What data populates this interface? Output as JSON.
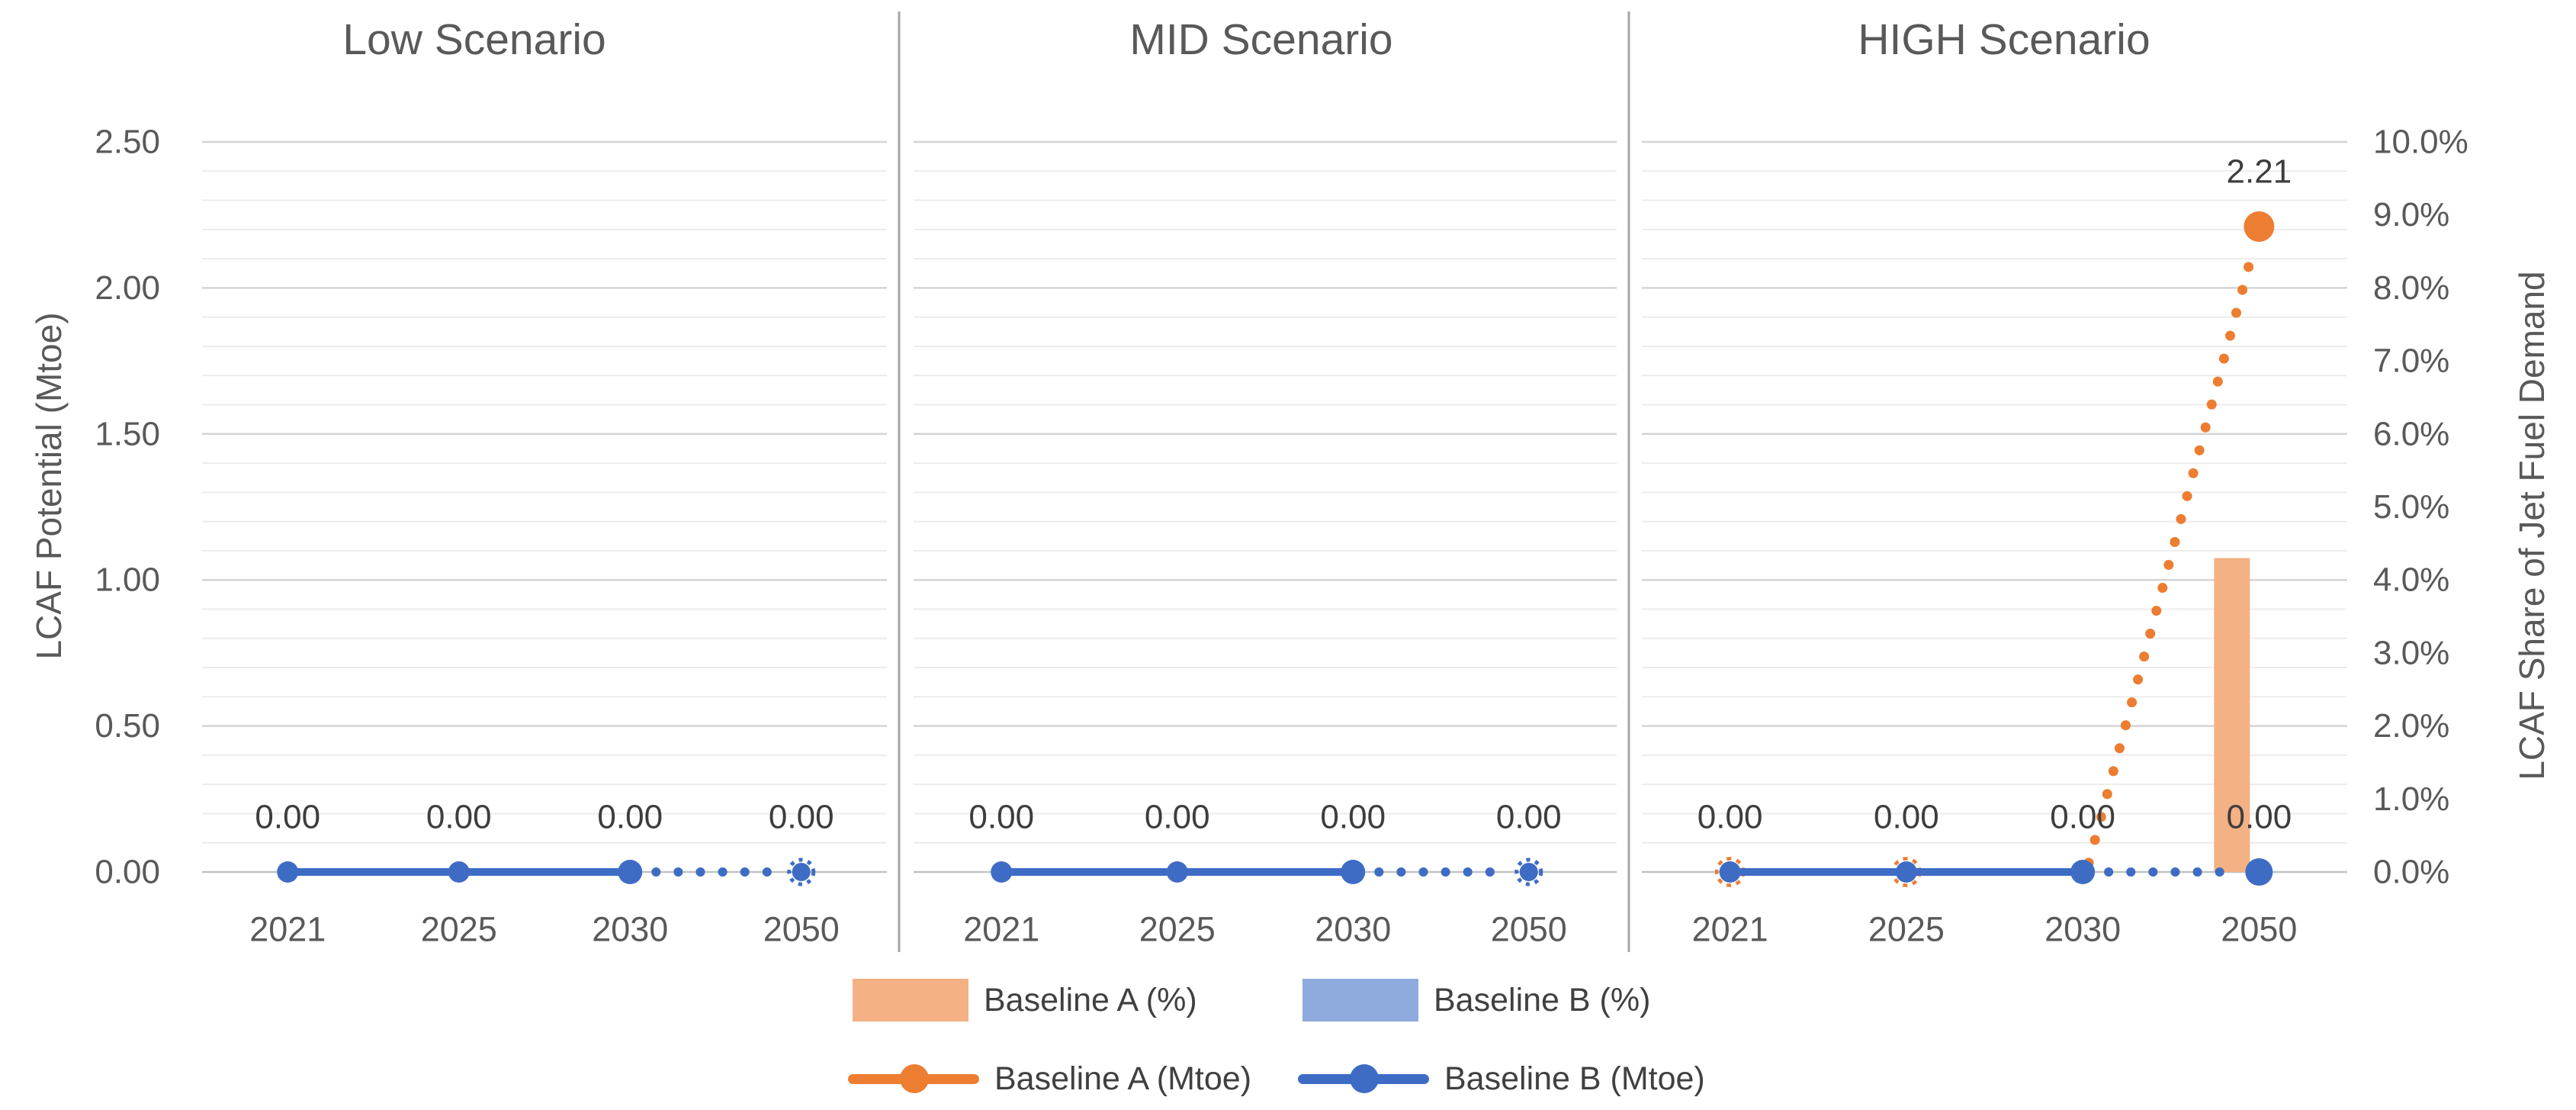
{
  "colors": {
    "blue": "#3E6CC5",
    "light_blue": "#8FAADC",
    "orange": "#ED7D31",
    "light_orange": "#F4B183",
    "axis_text": "#595959",
    "data_label_text": "#3D3D3D",
    "legend_text": "#404040",
    "grid_minor": "#ECECEC",
    "grid_major": "#D4D4D4",
    "grid_zero": "#C2C2C2",
    "panel_separator": "#A6A6A6"
  },
  "left_axis": {
    "title": "LCAF Potential (Mtoe)",
    "min": 0,
    "max": 2.5,
    "major_step": 0.5,
    "minor_step": 0.1,
    "ticks": [
      "2.50",
      "2.00",
      "1.50",
      "1.00",
      "0.50",
      "0.00"
    ],
    "tick_values": [
      2.5,
      2.0,
      1.5,
      1.0,
      0.5,
      0.0
    ]
  },
  "right_axis": {
    "title": "LCAF Share of Jet Fuel Demand",
    "min": 0,
    "max": 10,
    "ticks": [
      "10.0%",
      "9.0%",
      "8.0%",
      "7.0%",
      "6.0%",
      "5.0%",
      "4.0%",
      "3.0%",
      "2.0%",
      "1.0%",
      "0.0%"
    ],
    "tick_values": [
      10,
      9,
      8,
      7,
      6,
      5,
      4,
      3,
      2,
      1,
      0
    ]
  },
  "chart_data": {
    "type": "bar",
    "subtype": "combo bar + line, 3 panels, dual axis",
    "categories": [
      "2021",
      "2025",
      "2030",
      "2050"
    ],
    "line_solid_until": "2030",
    "line_dotted_after": "2030",
    "panels": [
      {
        "title": "Low Scenario",
        "bars": [
          {
            "name": "Baseline A (%)",
            "axis": "right",
            "values_pct": [
              0,
              0,
              0,
              0
            ]
          },
          {
            "name": "Baseline B (%)",
            "axis": "right",
            "values_pct": [
              0,
              0,
              0,
              0
            ]
          }
        ],
        "lines": [
          {
            "name": "Baseline A (Mtoe)",
            "axis": "left",
            "values_mtoe": [
              0,
              0,
              0,
              0
            ],
            "point_labels": [
              "",
              "",
              "",
              ""
            ]
          },
          {
            "name": "Baseline B (Mtoe)",
            "axis": "left",
            "values_mtoe": [
              0,
              0,
              0,
              0
            ],
            "point_labels": [
              "0.00",
              "0.00",
              "0.00",
              "0.00"
            ]
          }
        ]
      },
      {
        "title": "MID Scenario",
        "bars": [
          {
            "name": "Baseline A (%)",
            "axis": "right",
            "values_pct": [
              0,
              0,
              0,
              0
            ]
          },
          {
            "name": "Baseline B (%)",
            "axis": "right",
            "values_pct": [
              0,
              0,
              0,
              0
            ]
          }
        ],
        "lines": [
          {
            "name": "Baseline A (Mtoe)",
            "axis": "left",
            "values_mtoe": [
              0,
              0,
              0,
              0
            ],
            "point_labels": [
              "",
              "",
              "",
              ""
            ]
          },
          {
            "name": "Baseline B (Mtoe)",
            "axis": "left",
            "values_mtoe": [
              0,
              0,
              0,
              0
            ],
            "point_labels": [
              "0.00",
              "0.00",
              "0.00",
              "0.00"
            ]
          }
        ]
      },
      {
        "title": "HIGH Scenario",
        "bars": [
          {
            "name": "Baseline A (%)",
            "axis": "right",
            "values_pct": [
              0,
              0,
              0,
              4.3
            ]
          },
          {
            "name": "Baseline B (%)",
            "axis": "right",
            "values_pct": [
              0,
              0,
              0,
              0
            ]
          }
        ],
        "lines": [
          {
            "name": "Baseline A (Mtoe)",
            "axis": "left",
            "values_mtoe": [
              0,
              0,
              0,
              2.21
            ],
            "point_labels": [
              "",
              "",
              "",
              "2.21"
            ]
          },
          {
            "name": "Baseline B (Mtoe)",
            "axis": "left",
            "values_mtoe": [
              0,
              0,
              0,
              0
            ],
            "point_labels": [
              "0.00",
              "0.00",
              "0.00",
              "0.00"
            ]
          }
        ]
      }
    ]
  },
  "legend": {
    "items": [
      {
        "label": "Baseline A (%)",
        "swatch": "bar",
        "color": "light_orange"
      },
      {
        "label": "Baseline B (%)",
        "swatch": "bar",
        "color": "light_blue"
      },
      {
        "label": "Baseline A (Mtoe)",
        "swatch": "line-marker",
        "color": "orange"
      },
      {
        "label": "Baseline B (Mtoe)",
        "swatch": "line-marker",
        "color": "blue"
      }
    ]
  }
}
